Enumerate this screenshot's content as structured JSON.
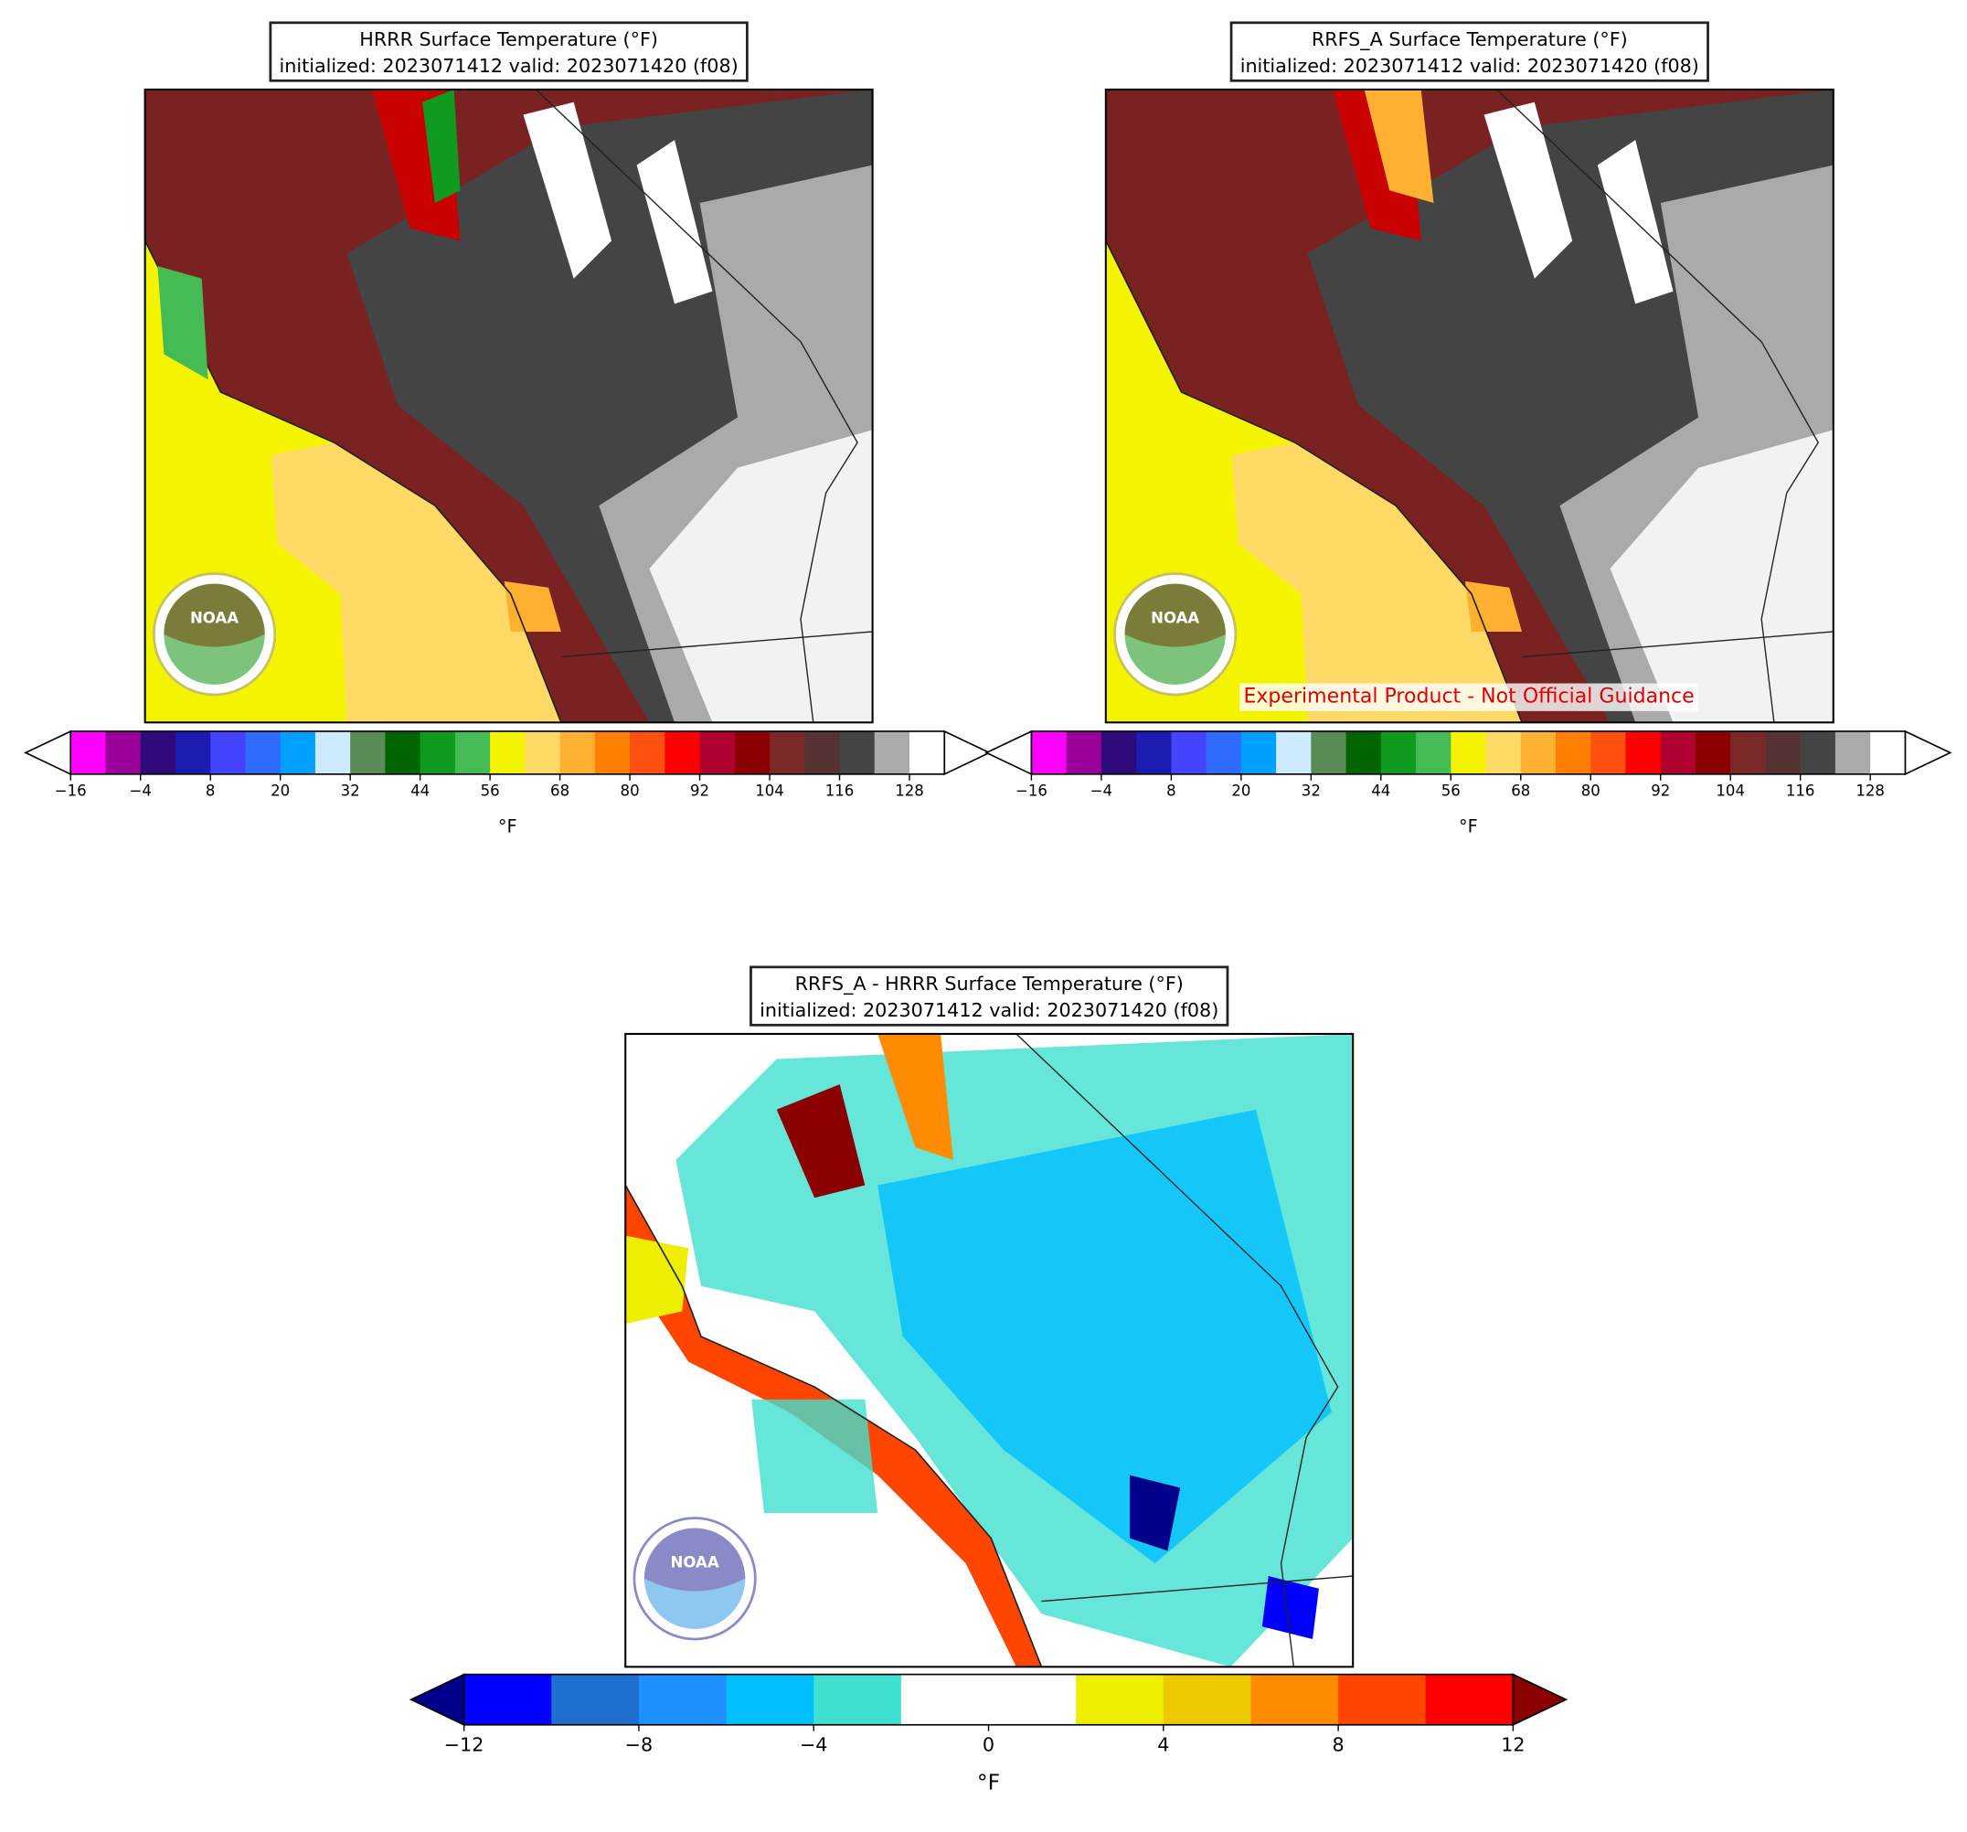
{
  "logo": "NOAA",
  "panels": [
    {
      "title": "HRRR Surface Temperature (°F)",
      "subtitle": "initialized: 2023071412 valid: 2023071420 (f08)",
      "colorbar": "temp"
    },
    {
      "title": "RRFS_A Surface Temperature (°F)",
      "subtitle": "initialized: 2023071412 valid: 2023071420 (f08)",
      "colorbar": "temp",
      "annotation": "Experimental Product - Not Official Guidance"
    },
    {
      "title": "RRFS_A - HRRR Surface Temperature (°F)",
      "subtitle": "initialized: 2023071412 valid: 2023071420 (f08)",
      "colorbar": "diff"
    }
  ],
  "colorbars": {
    "temp": {
      "label": "°F",
      "bounds": [
        -16,
        -10,
        -4,
        2,
        8,
        14,
        20,
        26,
        32,
        38,
        44,
        50,
        56,
        62,
        68,
        74,
        80,
        86,
        92,
        98,
        104,
        110,
        116,
        122,
        128,
        134
      ],
      "colors": [
        "#ff00ff",
        "#990099",
        "#2e0a7a",
        "#1c1cb0",
        "#4444ff",
        "#2f6bff",
        "#00a0ff",
        "#cdeaff",
        "#5a8a55",
        "#006400",
        "#109a20",
        "#44bb55",
        "#f4f400",
        "#ffd966",
        "#ffb030",
        "#ff8000",
        "#ff5010",
        "#ff0000",
        "#b00030",
        "#8b0000",
        "#7b2828",
        "#553333",
        "#444444",
        "#aaaaaa",
        "#ffffff"
      ],
      "extend_colors": [
        "#ffffff",
        "#ffffff"
      ],
      "ticks": [
        {
          "value": -16,
          "label": "−16"
        },
        {
          "value": -4,
          "label": "−4"
        },
        8,
        20,
        32,
        44,
        56,
        68,
        80,
        92,
        104,
        116,
        128
      ]
    },
    "diff": {
      "label": "°F",
      "bounds": [
        -12,
        -10,
        -8,
        -6,
        -4,
        -2,
        0,
        2,
        4,
        6,
        8,
        10,
        12
      ],
      "colors": [
        "#0000ff",
        "#1e6fcf",
        "#1e90ff",
        "#00bfff",
        "#40e0d0",
        "#ffffff",
        "#ffffff",
        "#eeee00",
        "#eec900",
        "#ff8c00",
        "#ff4500",
        "#ff0000"
      ],
      "extend_colors": [
        "#00008b",
        "#8b0000"
      ],
      "ticks": [
        {
          "value": -12,
          "label": "−12"
        },
        {
          "value": -8,
          "label": "−8"
        },
        {
          "value": -4,
          "label": "−4"
        },
        0,
        4,
        8,
        12
      ]
    }
  }
}
